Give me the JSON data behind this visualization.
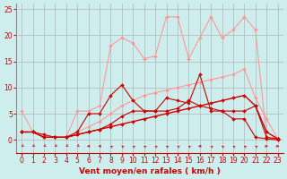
{
  "background_color": "#ceeeed",
  "grid_color": "#aaaaaa",
  "x_label": "Vent moyen/en rafales ( km/h )",
  "x_ticks": [
    0,
    1,
    2,
    3,
    4,
    5,
    6,
    7,
    8,
    9,
    10,
    11,
    12,
    13,
    14,
    15,
    16,
    17,
    18,
    19,
    20,
    21,
    22,
    23
  ],
  "ylim": [
    -2.5,
    26
  ],
  "xlim": [
    -0.5,
    23.5
  ],
  "yticks": [
    0,
    5,
    10,
    15,
    20,
    25
  ],
  "series": [
    {
      "x": [
        0,
        1,
        2,
        3,
        4,
        5,
        6,
        7,
        8,
        9,
        10,
        11,
        12,
        13,
        14,
        15,
        16,
        17,
        18,
        19,
        20,
        21,
        22,
        23
      ],
      "y": [
        5.5,
        1.5,
        0.5,
        0.5,
        0.5,
        5.5,
        5.5,
        6.5,
        18.0,
        19.5,
        18.5,
        15.5,
        16.0,
        23.5,
        23.5,
        15.5,
        19.5,
        23.5,
        19.5,
        21.0,
        23.5,
        21.0,
        0.5,
        0.2
      ],
      "color": "#ff9999",
      "lw": 0.8,
      "marker": "D",
      "ms": 2.0
    },
    {
      "x": [
        0,
        1,
        2,
        3,
        4,
        5,
        6,
        7,
        8,
        9,
        10,
        11,
        12,
        13,
        14,
        15,
        16,
        17,
        18,
        19,
        20,
        21,
        22,
        23
      ],
      "y": [
        1.5,
        1.5,
        0.5,
        0.5,
        0.5,
        1.5,
        2.5,
        3.5,
        5.0,
        6.5,
        7.5,
        8.5,
        9.0,
        9.5,
        10.0,
        10.5,
        11.0,
        11.5,
        12.0,
        12.5,
        13.5,
        8.0,
        4.0,
        0.2
      ],
      "color": "#ff9999",
      "lw": 0.8,
      "marker": "D",
      "ms": 2.0
    },
    {
      "x": [
        0,
        1,
        2,
        3,
        4,
        5,
        6,
        7,
        8,
        9,
        10,
        11,
        12,
        13,
        14,
        15,
        16,
        17,
        18,
        19,
        20,
        21,
        22,
        23
      ],
      "y": [
        1.5,
        1.5,
        0.5,
        0.5,
        0.5,
        1.5,
        5.0,
        5.0,
        8.5,
        10.5,
        7.5,
        5.5,
        5.5,
        8.0,
        7.5,
        7.0,
        12.5,
        5.5,
        5.5,
        4.0,
        4.0,
        0.5,
        0.2,
        0.0
      ],
      "color": "#cc0000",
      "lw": 0.8,
      "marker": "D",
      "ms": 2.0
    },
    {
      "x": [
        0,
        1,
        2,
        3,
        4,
        5,
        6,
        7,
        8,
        9,
        10,
        11,
        12,
        13,
        14,
        15,
        16,
        17,
        18,
        19,
        20,
        21,
        22,
        23
      ],
      "y": [
        1.5,
        1.5,
        1.0,
        0.5,
        0.5,
        1.0,
        1.5,
        2.0,
        3.0,
        4.5,
        5.5,
        5.5,
        5.5,
        5.5,
        6.0,
        7.5,
        6.5,
        6.0,
        5.5,
        5.5,
        5.5,
        6.5,
        0.5,
        0.2
      ],
      "color": "#cc0000",
      "lw": 0.8,
      "marker": "D",
      "ms": 2.0
    },
    {
      "x": [
        0,
        1,
        2,
        3,
        4,
        5,
        6,
        7,
        8,
        9,
        10,
        11,
        12,
        13,
        14,
        15,
        16,
        17,
        18,
        19,
        20,
        21,
        22,
        23
      ],
      "y": [
        1.5,
        1.5,
        0.5,
        0.5,
        0.5,
        1.0,
        1.5,
        2.0,
        2.5,
        3.0,
        3.5,
        4.0,
        4.5,
        5.0,
        5.5,
        6.0,
        6.5,
        7.0,
        7.5,
        8.0,
        8.5,
        6.5,
        1.5,
        0.2
      ],
      "color": "#cc0000",
      "lw": 1.0,
      "marker": "D",
      "ms": 2.0
    }
  ],
  "arrow_angles": [
    225,
    225,
    225,
    225,
    225,
    225,
    270,
    270,
    315,
    315,
    315,
    315,
    315,
    315,
    315,
    315,
    270,
    315,
    315,
    315,
    315,
    315,
    90,
    90
  ],
  "tick_fontsize": 5.5,
  "label_fontsize": 6.5,
  "arrow_color": "#cc0000"
}
